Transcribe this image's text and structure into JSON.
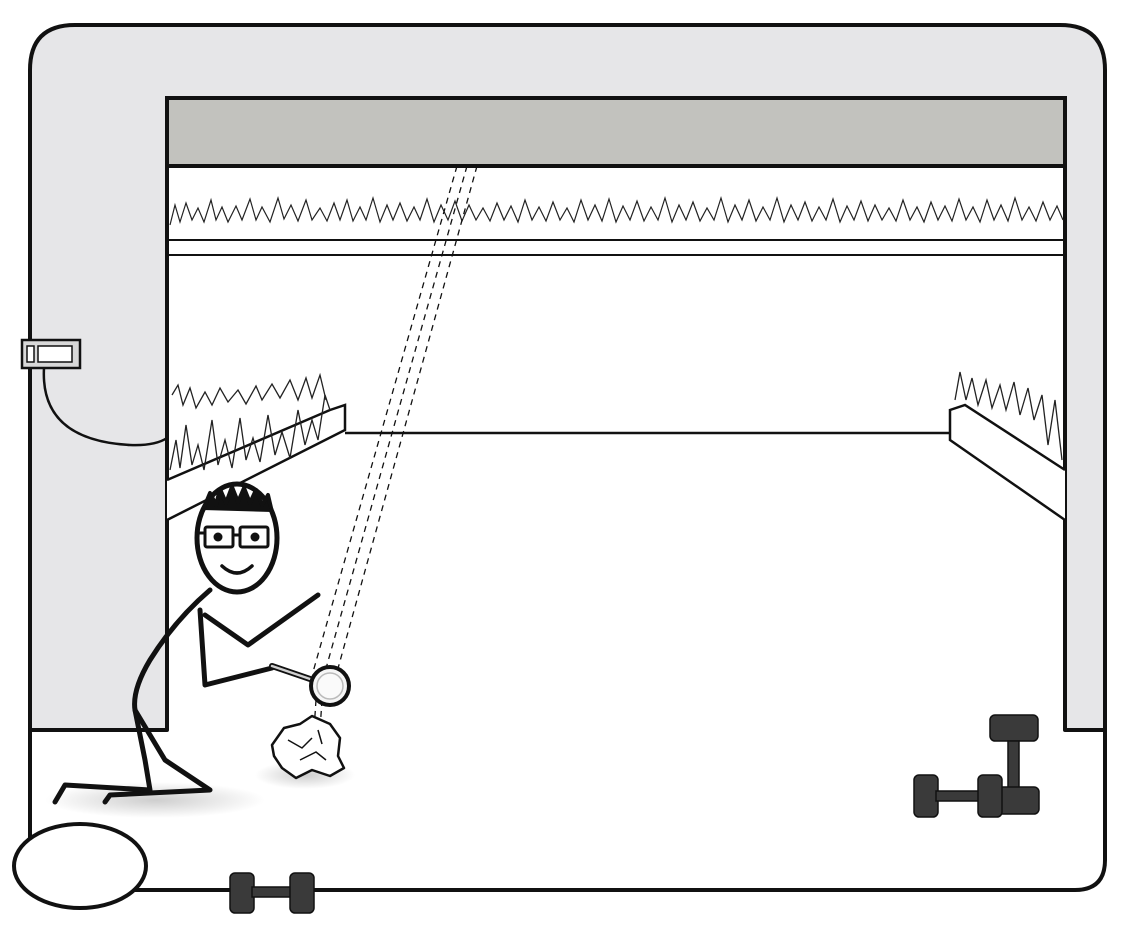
{
  "scene": {
    "description_elements": [
      "garage-door",
      "garage-opener-wall-button",
      "stick-figure-with-magnifying-glass",
      "crumpled-paper",
      "dumbbells",
      "grass-tufts"
    ]
  },
  "colors": {
    "frame_fill": "#e6e6e8",
    "door_header_fill": "#c2c2be",
    "outline": "#111111",
    "background": "#ffffff",
    "dumbbell": "#3a3a3a",
    "shadow": "#d4d4d4"
  },
  "icons": {
    "magnifier": "magnifying-glass-icon",
    "dumbbell": "dumbbell-icon",
    "switch": "wall-switch-icon"
  }
}
